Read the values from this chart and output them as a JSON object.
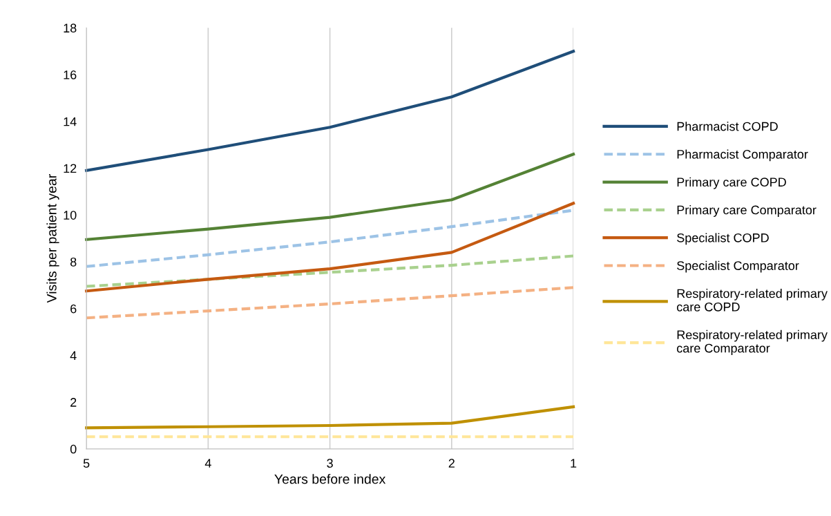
{
  "chart_data": {
    "type": "line",
    "xlabel": "Years before index",
    "ylabel": "Visits per patient year",
    "x": [
      5,
      4,
      3,
      2,
      1
    ],
    "xlim": [
      5,
      1
    ],
    "xticks": [
      5,
      4,
      3,
      2,
      1
    ],
    "ylim": [
      0,
      18
    ],
    "yticks": [
      0,
      2,
      4,
      6,
      8,
      10,
      12,
      14,
      16,
      18
    ],
    "grid": "x",
    "legend": "right",
    "marker": "none",
    "series": [
      {
        "name": "Pharmacist COPD",
        "color": "#1f4e79",
        "line_style": "solid",
        "values": [
          11.9,
          12.8,
          13.75,
          15.05,
          17.0
        ]
      },
      {
        "name": "Pharmacist Comparator",
        "color": "#9dc3e6",
        "line_style": "dashed",
        "values": [
          7.8,
          8.3,
          8.85,
          9.5,
          10.2
        ]
      },
      {
        "name": "Primary care COPD",
        "color": "#548235",
        "line_style": "solid",
        "values": [
          8.95,
          9.4,
          9.9,
          10.65,
          12.6
        ]
      },
      {
        "name": "Primary care Comparator",
        "color": "#a9d18e",
        "line_style": "dashed",
        "values": [
          6.95,
          7.25,
          7.55,
          7.85,
          8.25
        ]
      },
      {
        "name": "Specialist COPD",
        "color": "#c55a11",
        "line_style": "solid",
        "values": [
          6.75,
          7.25,
          7.7,
          8.4,
          10.5
        ]
      },
      {
        "name": "Specialist Comparator",
        "color": "#f4b183",
        "line_style": "dashed",
        "values": [
          5.6,
          5.9,
          6.2,
          6.55,
          6.9
        ]
      },
      {
        "name": "Respiratory-related primary care COPD",
        "color": "#bf9000",
        "line_style": "solid",
        "values": [
          0.9,
          0.95,
          1.0,
          1.1,
          1.8
        ]
      },
      {
        "name": "Respiratory-related primary care Comparator",
        "color": "#ffe699",
        "line_style": "dashed",
        "values": [
          0.52,
          0.52,
          0.52,
          0.52,
          0.52
        ]
      }
    ]
  }
}
